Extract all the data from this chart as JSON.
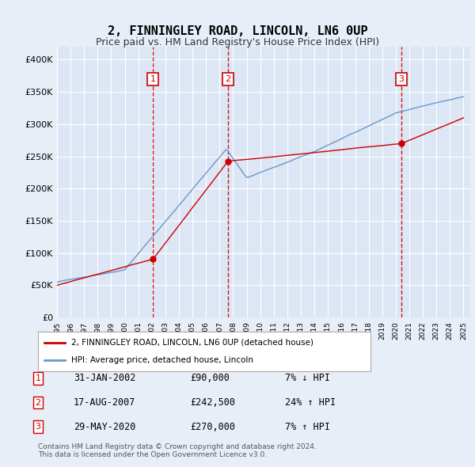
{
  "title": "2, FINNINGLEY ROAD, LINCOLN, LN6 0UP",
  "subtitle": "Price paid vs. HM Land Registry's House Price Index (HPI)",
  "xlabel": "",
  "ylabel": "",
  "ylim": [
    0,
    420000
  ],
  "yticks": [
    0,
    50000,
    100000,
    150000,
    200000,
    250000,
    300000,
    350000,
    400000
  ],
  "ytick_labels": [
    "£0",
    "£50K",
    "£100K",
    "£150K",
    "£200K",
    "£250K",
    "£300K",
    "£350K",
    "£400K"
  ],
  "background_color": "#e8eef8",
  "plot_bg_color": "#dce6f5",
  "grid_color": "#ffffff",
  "sale_color": "#cc0000",
  "hpi_color": "#6699cc",
  "annotation_box_color": "#cc0000",
  "annotation_text_color": "#ffffff",
  "sales": [
    {
      "date_num": 2002.08,
      "price": 90000,
      "label": "1"
    },
    {
      "date_num": 2007.63,
      "price": 242500,
      "label": "2"
    },
    {
      "date_num": 2020.41,
      "price": 270000,
      "label": "3"
    }
  ],
  "table_rows": [
    {
      "num": "1",
      "date": "31-JAN-2002",
      "price": "£90,000",
      "hpi_change": "7% ↓ HPI"
    },
    {
      "num": "2",
      "date": "17-AUG-2007",
      "price": "£242,500",
      "hpi_change": "24% ↑ HPI"
    },
    {
      "num": "3",
      "date": "29-MAY-2020",
      "price": "£270,000",
      "hpi_change": "7% ↑ HPI"
    }
  ],
  "legend_entries": [
    "2, FINNINGLEY ROAD, LINCOLN, LN6 0UP (detached house)",
    "HPI: Average price, detached house, Lincoln"
  ],
  "footer_text": "Contains HM Land Registry data © Crown copyright and database right 2024.\nThis data is licensed under the Open Government Licence v3.0.",
  "title_fontsize": 11,
  "subtitle_fontsize": 9,
  "tick_fontsize": 8,
  "xmin": 1995.0,
  "xmax": 2025.5
}
